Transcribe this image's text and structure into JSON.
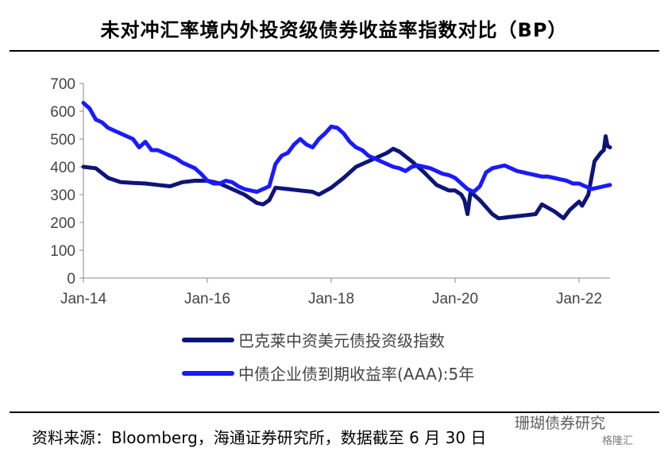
{
  "header": {
    "title": "未对冲汇率境内外投资级债券收益率指数对比（BP）"
  },
  "footer": {
    "source": "资料来源：Bloomberg，海通证券研究所，数据截至 6 月 30 日",
    "watermark": "珊瑚债券研究",
    "watermark_small": "格隆汇"
  },
  "colors": {
    "series1": "#0d1579",
    "series2": "#1a1aff",
    "axis": "#888888",
    "text": "#444444"
  },
  "chart_data": {
    "type": "line",
    "title": "",
    "xlabel": "",
    "ylabel": "",
    "ylim": [
      0,
      700
    ],
    "yticks": [
      0,
      100,
      200,
      300,
      400,
      500,
      600,
      700
    ],
    "xlim": [
      2014.0,
      2022.5
    ],
    "xticks": [
      {
        "value": 2014,
        "label": "Jan-14"
      },
      {
        "value": 2016,
        "label": "Jan-16"
      },
      {
        "value": 2018,
        "label": "Jan-18"
      },
      {
        "value": 2020,
        "label": "Jan-20"
      },
      {
        "value": 2022,
        "label": "Jan-22"
      }
    ],
    "grid": false,
    "legend_position": "bottom",
    "series": [
      {
        "name": "巴克莱中资美元债投资级指数",
        "color": "#0d1579",
        "points": [
          [
            2014.0,
            400
          ],
          [
            2014.2,
            395
          ],
          [
            2014.4,
            360
          ],
          [
            2014.6,
            345
          ],
          [
            2014.8,
            342
          ],
          [
            2015.0,
            340
          ],
          [
            2015.2,
            335
          ],
          [
            2015.4,
            330
          ],
          [
            2015.6,
            345
          ],
          [
            2015.8,
            350
          ],
          [
            2016.0,
            350
          ],
          [
            2016.2,
            340
          ],
          [
            2016.4,
            320
          ],
          [
            2016.6,
            300
          ],
          [
            2016.8,
            270
          ],
          [
            2016.9,
            265
          ],
          [
            2017.0,
            280
          ],
          [
            2017.1,
            325
          ],
          [
            2017.3,
            320
          ],
          [
            2017.5,
            315
          ],
          [
            2017.7,
            310
          ],
          [
            2017.8,
            300
          ],
          [
            2018.0,
            325
          ],
          [
            2018.2,
            360
          ],
          [
            2018.4,
            400
          ],
          [
            2018.6,
            420
          ],
          [
            2018.8,
            440
          ],
          [
            2018.9,
            450
          ],
          [
            2019.0,
            465
          ],
          [
            2019.1,
            455
          ],
          [
            2019.3,
            420
          ],
          [
            2019.5,
            380
          ],
          [
            2019.7,
            335
          ],
          [
            2019.9,
            315
          ],
          [
            2020.0,
            315
          ],
          [
            2020.1,
            300
          ],
          [
            2020.15,
            280
          ],
          [
            2020.2,
            230
          ],
          [
            2020.25,
            310
          ],
          [
            2020.4,
            280
          ],
          [
            2020.6,
            230
          ],
          [
            2020.7,
            215
          ],
          [
            2020.9,
            220
          ],
          [
            2021.1,
            225
          ],
          [
            2021.3,
            230
          ],
          [
            2021.4,
            265
          ],
          [
            2021.6,
            240
          ],
          [
            2021.75,
            215
          ],
          [
            2021.85,
            245
          ],
          [
            2022.0,
            275
          ],
          [
            2022.05,
            260
          ],
          [
            2022.15,
            300
          ],
          [
            2022.2,
            360
          ],
          [
            2022.25,
            420
          ],
          [
            2022.35,
            450
          ],
          [
            2022.4,
            460
          ],
          [
            2022.43,
            510
          ],
          [
            2022.46,
            475
          ],
          [
            2022.5,
            470
          ]
        ]
      },
      {
        "name": "中债企业债到期收益率(AAA):5年",
        "color": "#1a1aff",
        "points": [
          [
            2014.0,
            630
          ],
          [
            2014.1,
            610
          ],
          [
            2014.2,
            570
          ],
          [
            2014.3,
            560
          ],
          [
            2014.4,
            540
          ],
          [
            2014.5,
            530
          ],
          [
            2014.6,
            520
          ],
          [
            2014.7,
            510
          ],
          [
            2014.8,
            500
          ],
          [
            2014.9,
            470
          ],
          [
            2015.0,
            490
          ],
          [
            2015.1,
            460
          ],
          [
            2015.2,
            460
          ],
          [
            2015.3,
            450
          ],
          [
            2015.4,
            440
          ],
          [
            2015.5,
            430
          ],
          [
            2015.6,
            415
          ],
          [
            2015.7,
            405
          ],
          [
            2015.8,
            395
          ],
          [
            2015.9,
            375
          ],
          [
            2016.0,
            350
          ],
          [
            2016.1,
            340
          ],
          [
            2016.2,
            340
          ],
          [
            2016.3,
            350
          ],
          [
            2016.4,
            345
          ],
          [
            2016.5,
            330
          ],
          [
            2016.6,
            320
          ],
          [
            2016.7,
            315
          ],
          [
            2016.8,
            310
          ],
          [
            2016.9,
            320
          ],
          [
            2017.0,
            330
          ],
          [
            2017.1,
            410
          ],
          [
            2017.2,
            440
          ],
          [
            2017.3,
            450
          ],
          [
            2017.4,
            480
          ],
          [
            2017.5,
            500
          ],
          [
            2017.6,
            480
          ],
          [
            2017.7,
            470
          ],
          [
            2017.8,
            500
          ],
          [
            2017.9,
            520
          ],
          [
            2018.0,
            545
          ],
          [
            2018.1,
            540
          ],
          [
            2018.2,
            520
          ],
          [
            2018.3,
            490
          ],
          [
            2018.4,
            470
          ],
          [
            2018.5,
            460
          ],
          [
            2018.6,
            440
          ],
          [
            2018.7,
            430
          ],
          [
            2018.8,
            420
          ],
          [
            2018.9,
            410
          ],
          [
            2019.0,
            400
          ],
          [
            2019.1,
            395
          ],
          [
            2019.2,
            385
          ],
          [
            2019.3,
            400
          ],
          [
            2019.4,
            405
          ],
          [
            2019.5,
            400
          ],
          [
            2019.6,
            395
          ],
          [
            2019.7,
            385
          ],
          [
            2019.8,
            375
          ],
          [
            2019.9,
            370
          ],
          [
            2020.0,
            360
          ],
          [
            2020.1,
            340
          ],
          [
            2020.2,
            320
          ],
          [
            2020.3,
            310
          ],
          [
            2020.4,
            330
          ],
          [
            2020.5,
            380
          ],
          [
            2020.6,
            395
          ],
          [
            2020.7,
            400
          ],
          [
            2020.8,
            405
          ],
          [
            2020.9,
            395
          ],
          [
            2021.0,
            385
          ],
          [
            2021.1,
            380
          ],
          [
            2021.2,
            375
          ],
          [
            2021.3,
            370
          ],
          [
            2021.4,
            365
          ],
          [
            2021.5,
            365
          ],
          [
            2021.6,
            360
          ],
          [
            2021.7,
            355
          ],
          [
            2021.8,
            350
          ],
          [
            2021.9,
            340
          ],
          [
            2022.0,
            340
          ],
          [
            2022.1,
            330
          ],
          [
            2022.2,
            320
          ],
          [
            2022.3,
            325
          ],
          [
            2022.4,
            330
          ],
          [
            2022.5,
            335
          ]
        ]
      }
    ]
  }
}
